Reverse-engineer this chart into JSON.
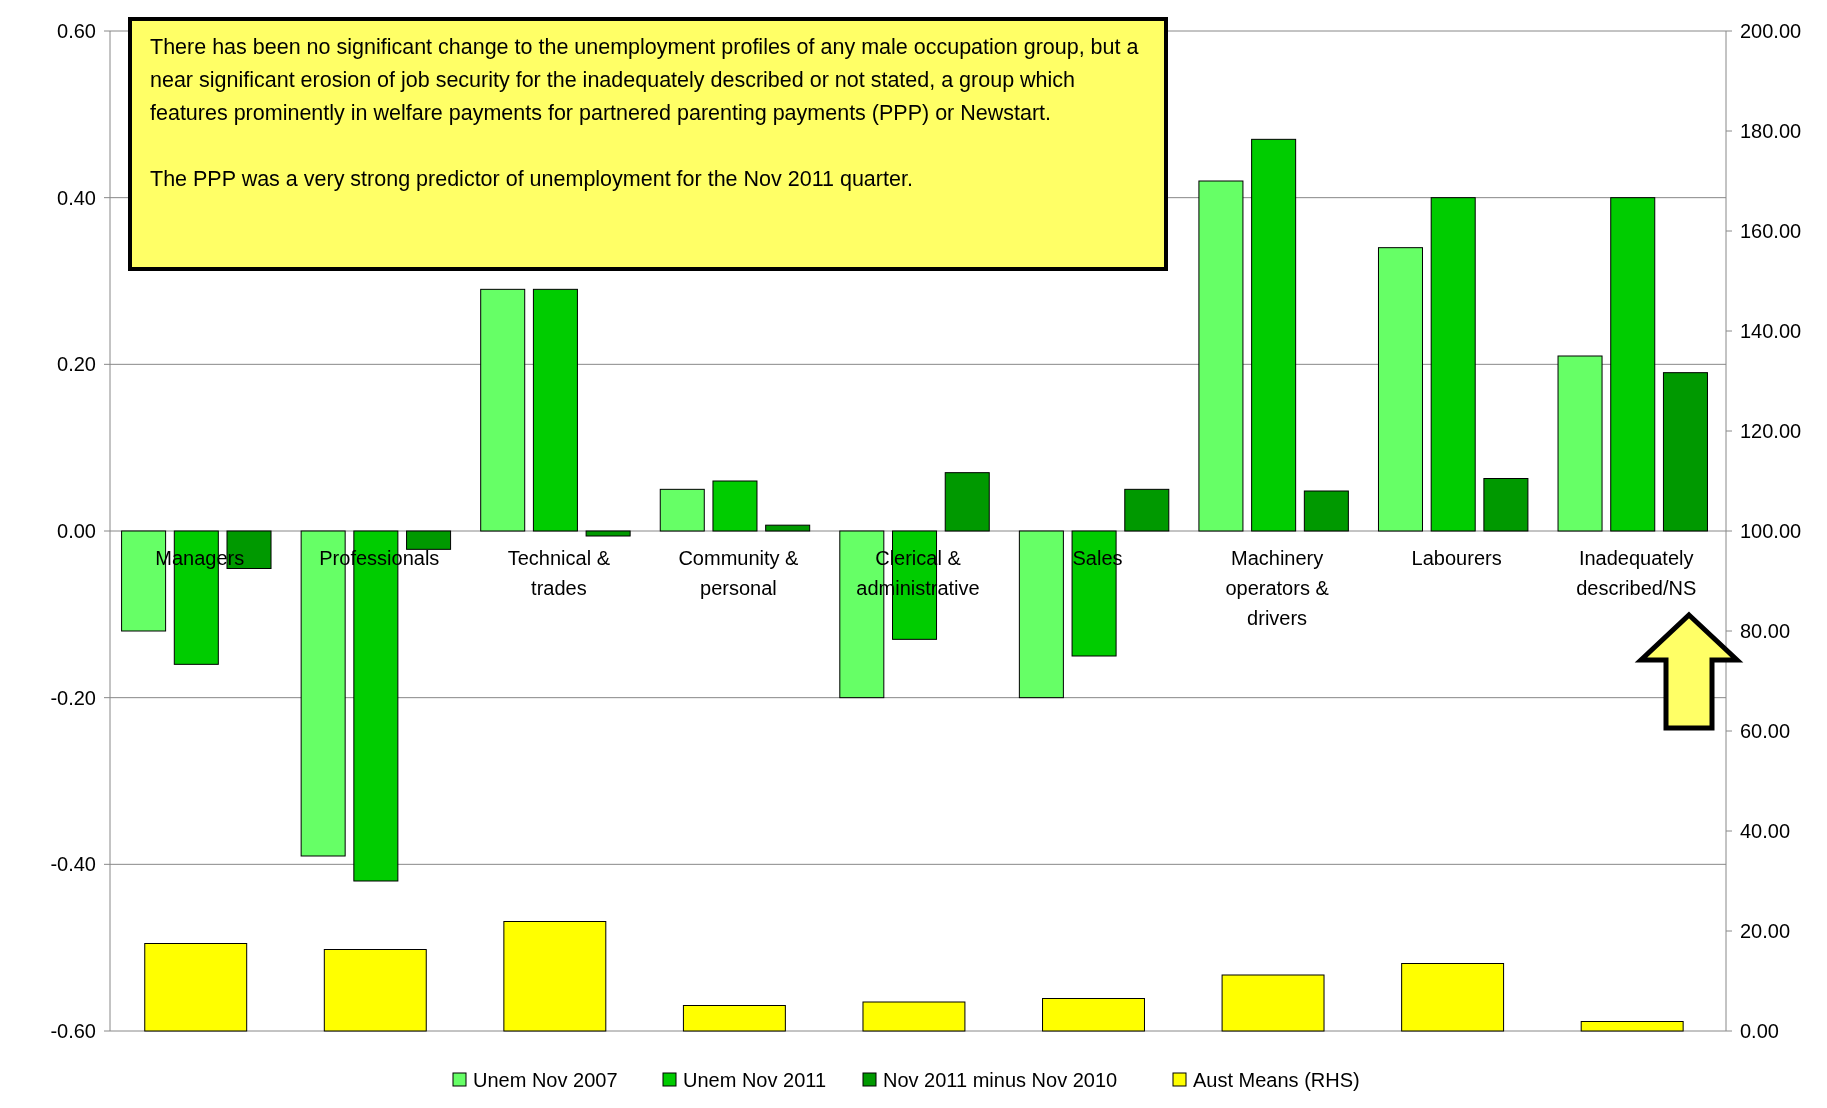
{
  "chart_data": {
    "type": "bar",
    "categories": [
      "Managers",
      "Professionals",
      "Technical & trades",
      "Community & personal",
      "Clerical & administrative",
      "Sales",
      "Machinery operators & drivers",
      "Labourers",
      "Inadequately described/NS"
    ],
    "series": [
      {
        "name": "Unem Nov 2007",
        "color": "#66ff66",
        "values": [
          -0.12,
          -0.39,
          0.29,
          0.05,
          -0.2,
          -0.2,
          0.42,
          0.34,
          0.21
        ]
      },
      {
        "name": "Unem Nov 2011",
        "color": "#00cc00",
        "values": [
          -0.16,
          -0.42,
          0.29,
          0.06,
          -0.13,
          -0.15,
          0.47,
          0.4,
          0.4
        ]
      },
      {
        "name": "Nov 2011 minus Nov 2010",
        "color": "#009900",
        "values": [
          -0.045,
          -0.022,
          -0.006,
          0.007,
          0.07,
          0.05,
          0.048,
          0.063,
          0.19
        ]
      },
      {
        "name": "Aust Means (RHS)",
        "color": "#ffff00",
        "axis": "y2",
        "values": [
          17.5,
          16.3,
          21.9,
          5.1,
          5.8,
          6.5,
          11.2,
          13.5,
          1.9
        ]
      }
    ],
    "ylim": [
      -0.6,
      0.6
    ],
    "yticks": [
      {
        "value": -0.6,
        "label": "-0.60"
      },
      {
        "value": -0.4,
        "label": "-0.40"
      },
      {
        "value": -0.2,
        "label": "-0.20"
      },
      {
        "value": 0,
        "label": "0.00"
      },
      {
        "value": 0.2,
        "label": "0.20"
      },
      {
        "value": 0.4,
        "label": "0.40"
      },
      {
        "value": 0.6,
        "label": "0.60"
      }
    ],
    "y2lim": [
      0,
      200
    ],
    "y2ticks": [
      {
        "value": 0,
        "label": "0.00"
      },
      {
        "value": 20,
        "label": "20.00"
      },
      {
        "value": 40,
        "label": "40.00"
      },
      {
        "value": 60,
        "label": "60.00"
      },
      {
        "value": 80,
        "label": "80.00"
      },
      {
        "value": 100,
        "label": "100.00"
      },
      {
        "value": 120,
        "label": "120.00"
      },
      {
        "value": 140,
        "label": "140.00"
      },
      {
        "value": 160,
        "label": "160.00"
      },
      {
        "value": 180,
        "label": "180.00"
      },
      {
        "value": 200,
        "label": "200.00"
      }
    ],
    "grid": "y",
    "legend": "bottom",
    "annotations": [
      "There has been no significant change to the unemployment profiles of any male occupation group, but a near significant erosion of job security for the inadequately described or not stated, a group which features prominently in welfare payments for partnered parenting payments (PPP) or Newstart.",
      "The PPP was a very strong predictor of unemployment for the Nov 2011 quarter."
    ]
  }
}
